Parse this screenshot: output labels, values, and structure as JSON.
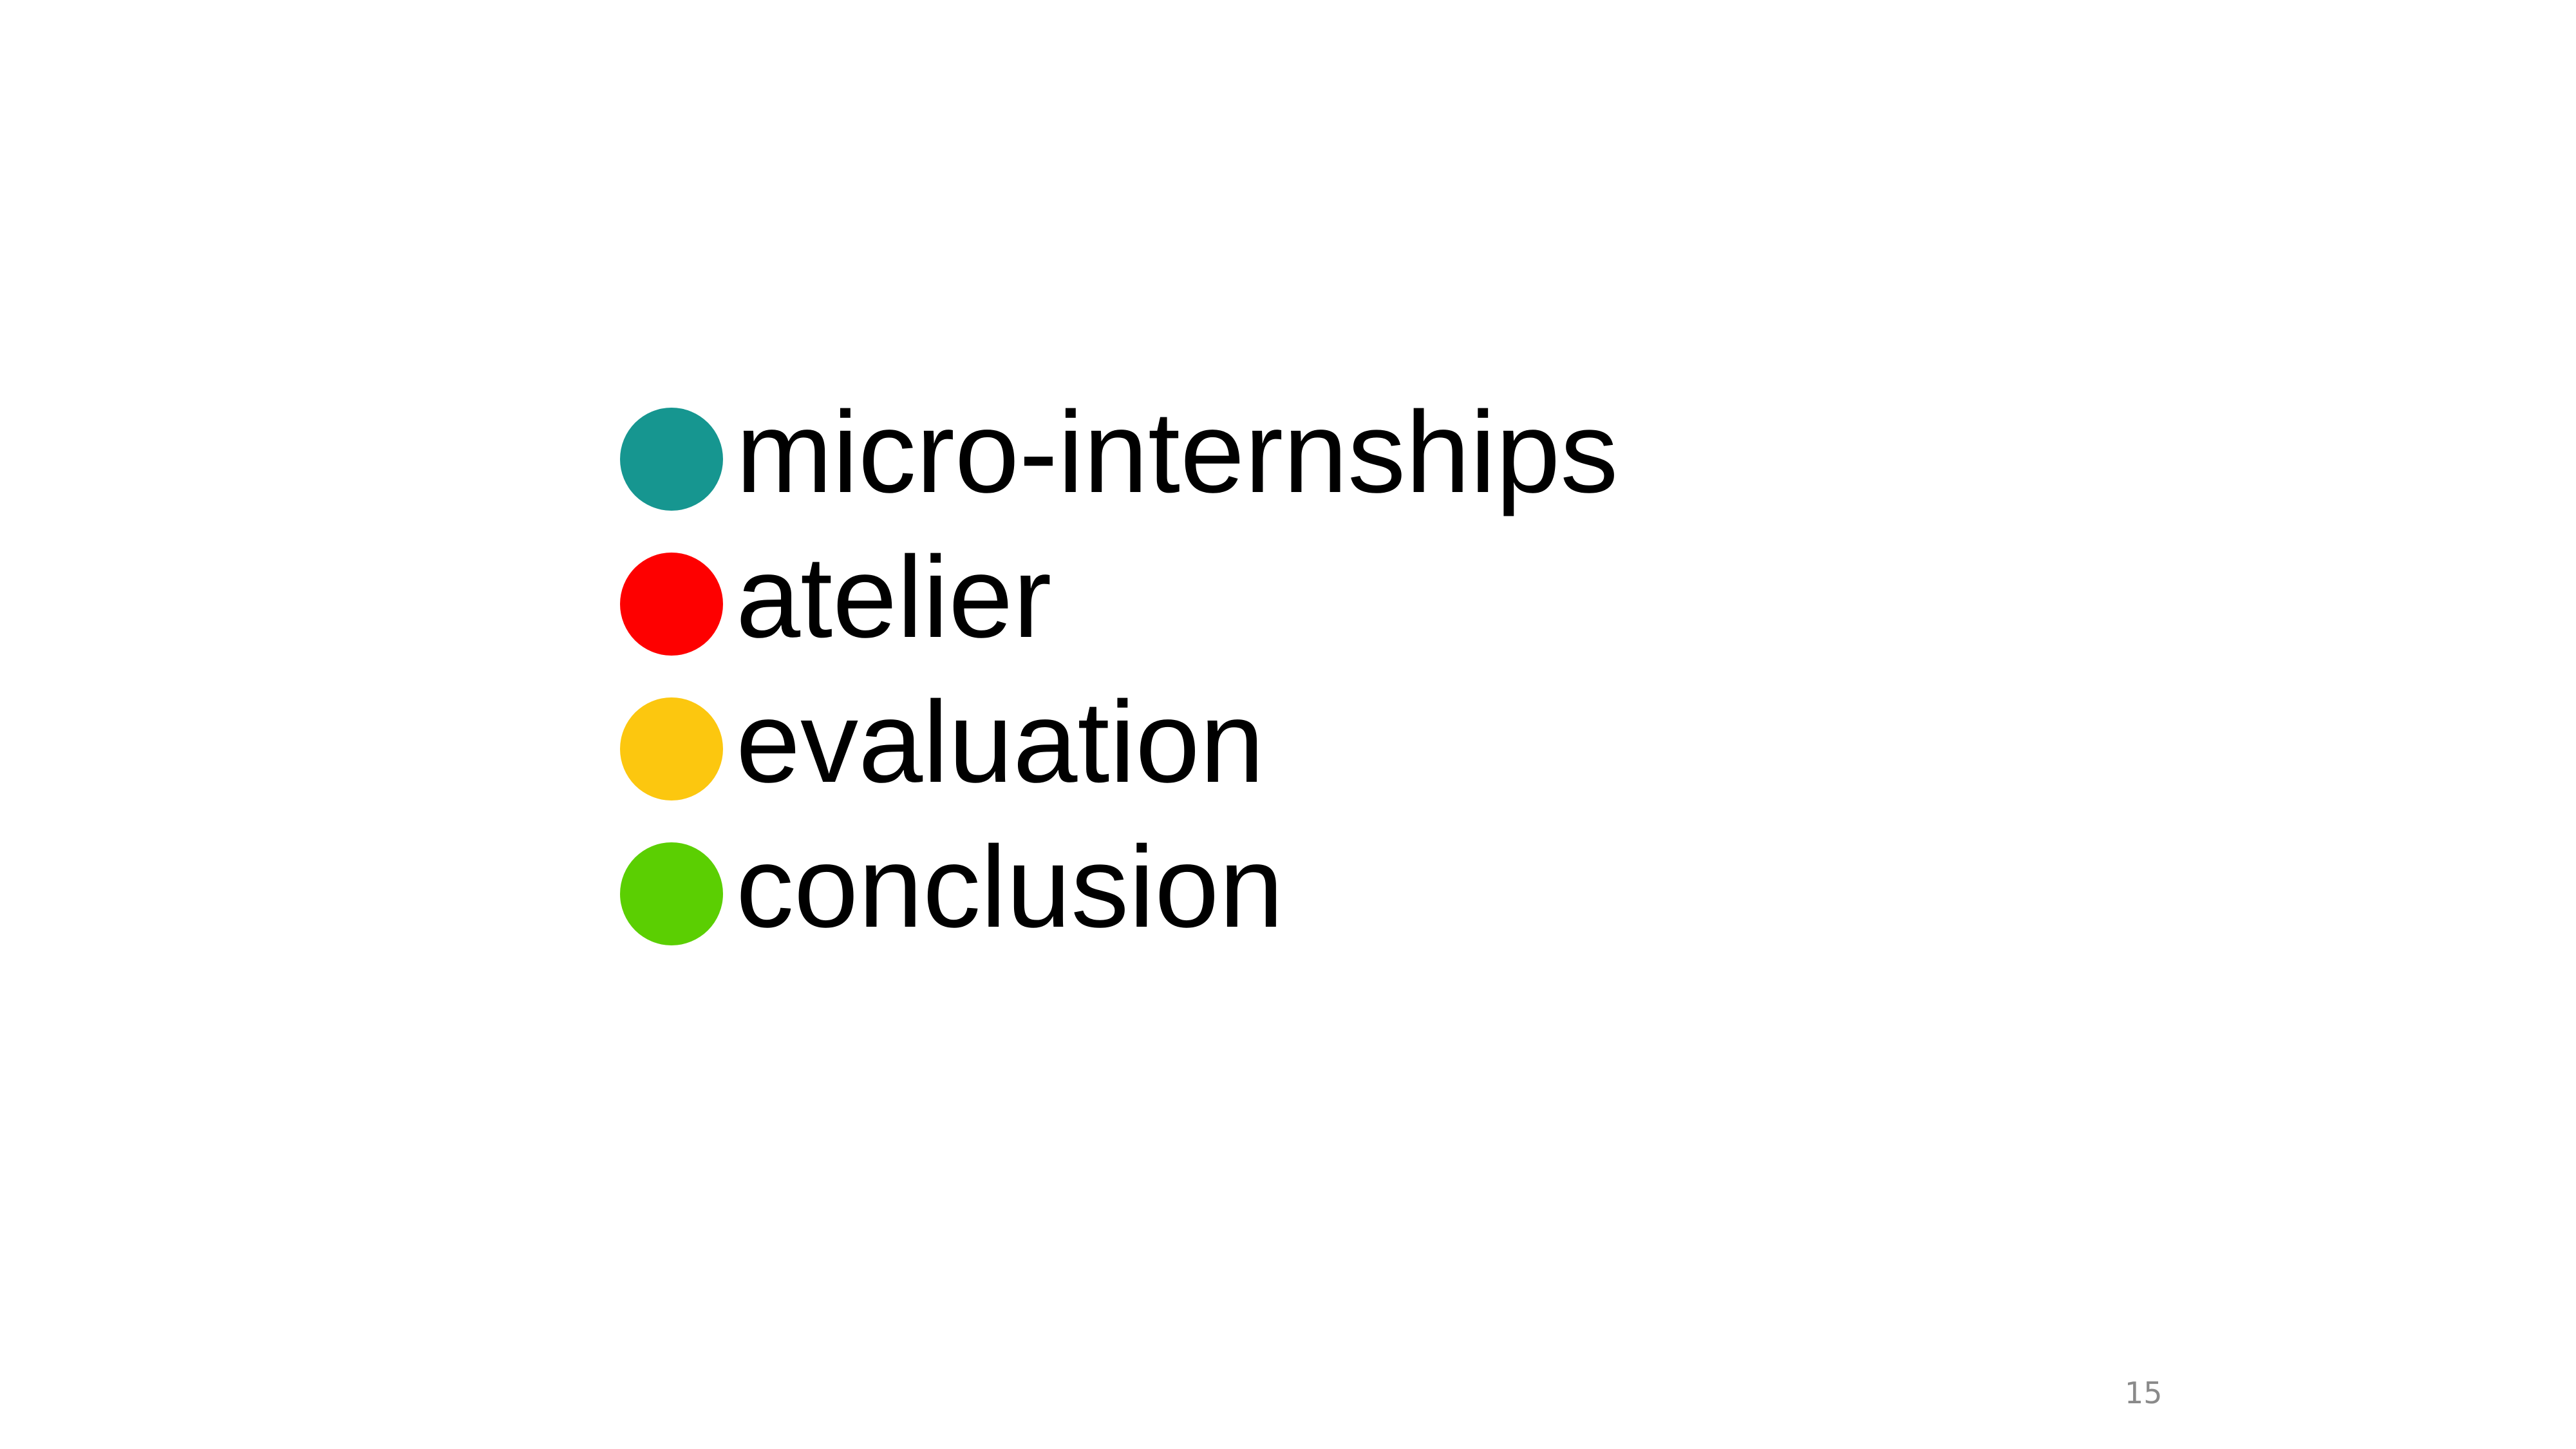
{
  "slide": {
    "agenda": [
      {
        "label": "micro-internships",
        "icon": "filled-circle-teal",
        "color": "#169690"
      },
      {
        "label": "atelier",
        "icon": "filled-circle-red",
        "color": "#fe0000"
      },
      {
        "label": "evaluation",
        "icon": "filled-circle-yellow",
        "color": "#fcc70f"
      },
      {
        "label": "conclusion",
        "icon": "filled-circle-green",
        "color": "#5bcf02"
      }
    ],
    "page_number": "15"
  }
}
